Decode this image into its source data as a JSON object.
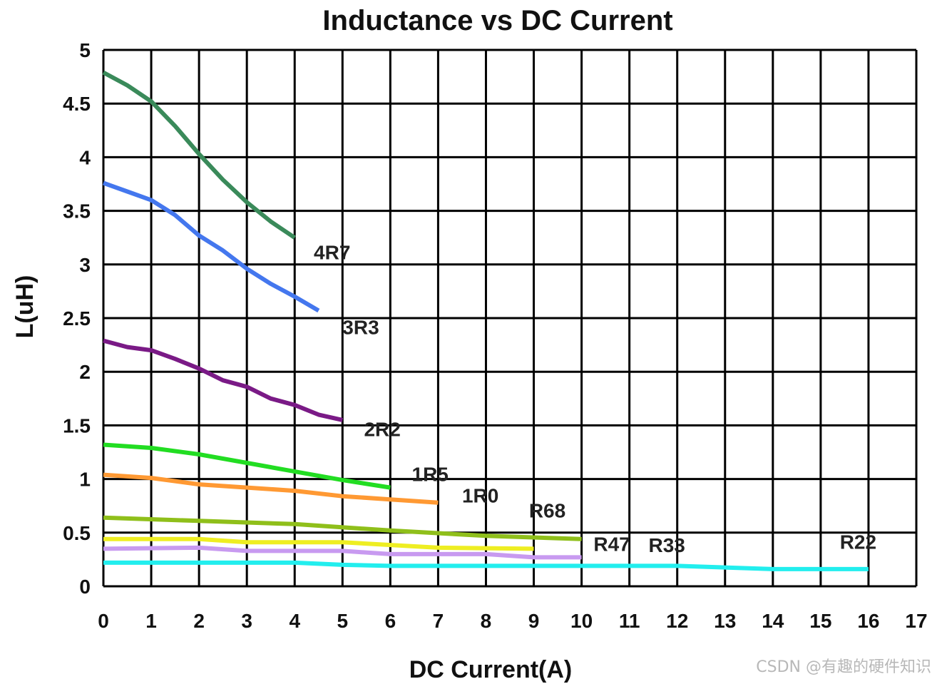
{
  "chart_data": {
    "type": "line",
    "title": "Inductance vs DC Current",
    "xlabel": "DC Current(A)",
    "ylabel": "L(uH)",
    "xlim": [
      0,
      17
    ],
    "ylim": [
      0,
      5
    ],
    "xticks": [
      "0",
      "1",
      "2",
      "3",
      "4",
      "5",
      "6",
      "7",
      "8",
      "9",
      "10",
      "11",
      "12",
      "13",
      "14",
      "15",
      "16",
      "17"
    ],
    "yticks": [
      "0",
      "0.5",
      "1",
      "1.5",
      "2",
      "2.5",
      "3",
      "3.5",
      "4",
      "4.5",
      "5"
    ],
    "grid": true,
    "legend": "none",
    "series": [
      {
        "name": "4R7",
        "color": "#3a8a5a",
        "x": [
          0,
          0.5,
          1,
          1.5,
          2,
          2.5,
          3,
          3.5,
          4
        ],
        "y": [
          4.79,
          4.67,
          4.52,
          4.29,
          4.03,
          3.79,
          3.58,
          3.4,
          3.25
        ]
      },
      {
        "name": "3R3",
        "color": "#4477ee",
        "x": [
          0,
          0.5,
          1,
          1.5,
          2,
          2.5,
          3,
          3.5,
          4,
          4.5
        ],
        "y": [
          3.76,
          3.68,
          3.6,
          3.46,
          3.27,
          3.13,
          2.96,
          2.82,
          2.7,
          2.57
        ]
      },
      {
        "name": "2R2",
        "color": "#7a1a86",
        "x": [
          0,
          0.5,
          1,
          1.5,
          2,
          2.5,
          3,
          3.5,
          4,
          4.5,
          5
        ],
        "y": [
          2.29,
          2.23,
          2.2,
          2.12,
          2.03,
          1.92,
          1.86,
          1.75,
          1.69,
          1.6,
          1.55
        ]
      },
      {
        "name": "1R5",
        "color": "#22dd22",
        "x": [
          0,
          1,
          2,
          3,
          4,
          5,
          6
        ],
        "y": [
          1.32,
          1.29,
          1.23,
          1.15,
          1.07,
          0.99,
          0.92
        ]
      },
      {
        "name": "1R0",
        "color": "#ff9933",
        "x": [
          0,
          1,
          2,
          3,
          4,
          5,
          6,
          7
        ],
        "y": [
          1.04,
          1.01,
          0.95,
          0.92,
          0.89,
          0.84,
          0.81,
          0.78
        ]
      },
      {
        "name": "R68",
        "color": "#8fbf1a",
        "x": [
          0,
          2,
          4,
          6,
          8,
          10
        ],
        "y": [
          0.64,
          0.61,
          0.58,
          0.52,
          0.47,
          0.44
        ]
      },
      {
        "name": "R47",
        "color": "#eeee22",
        "x": [
          0,
          2,
          3,
          5,
          7,
          9
        ],
        "y": [
          0.44,
          0.44,
          0.41,
          0.41,
          0.36,
          0.35
        ]
      },
      {
        "name": "R33",
        "color": "#c89af0",
        "x": [
          0,
          2,
          3,
          5,
          6,
          8,
          9,
          10
        ],
        "y": [
          0.35,
          0.36,
          0.33,
          0.33,
          0.3,
          0.3,
          0.27,
          0.27
        ]
      },
      {
        "name": "R22",
        "color": "#22eeee",
        "x": [
          0,
          4,
          5,
          6,
          11,
          12,
          14,
          16
        ],
        "y": [
          0.22,
          0.22,
          0.2,
          0.19,
          0.19,
          0.19,
          0.16,
          0.16
        ]
      }
    ],
    "annotations": [
      {
        "text": "4R7",
        "x": 4.4,
        "y": 3.05
      },
      {
        "text": "3R3",
        "x": 5.0,
        "y": 2.35
      },
      {
        "text": "2R2",
        "x": 5.45,
        "y": 1.4
      },
      {
        "text": "1R5",
        "x": 6.45,
        "y": 0.98
      },
      {
        "text": "1R0",
        "x": 7.5,
        "y": 0.78
      },
      {
        "text": "R68",
        "x": 8.9,
        "y": 0.64
      },
      {
        "text": "R47",
        "x": 10.25,
        "y": 0.33
      },
      {
        "text": "R33",
        "x": 11.4,
        "y": 0.32
      },
      {
        "text": "R22",
        "x": 15.4,
        "y": 0.35
      }
    ]
  },
  "watermark": "CSDN @有趣的硬件知识"
}
